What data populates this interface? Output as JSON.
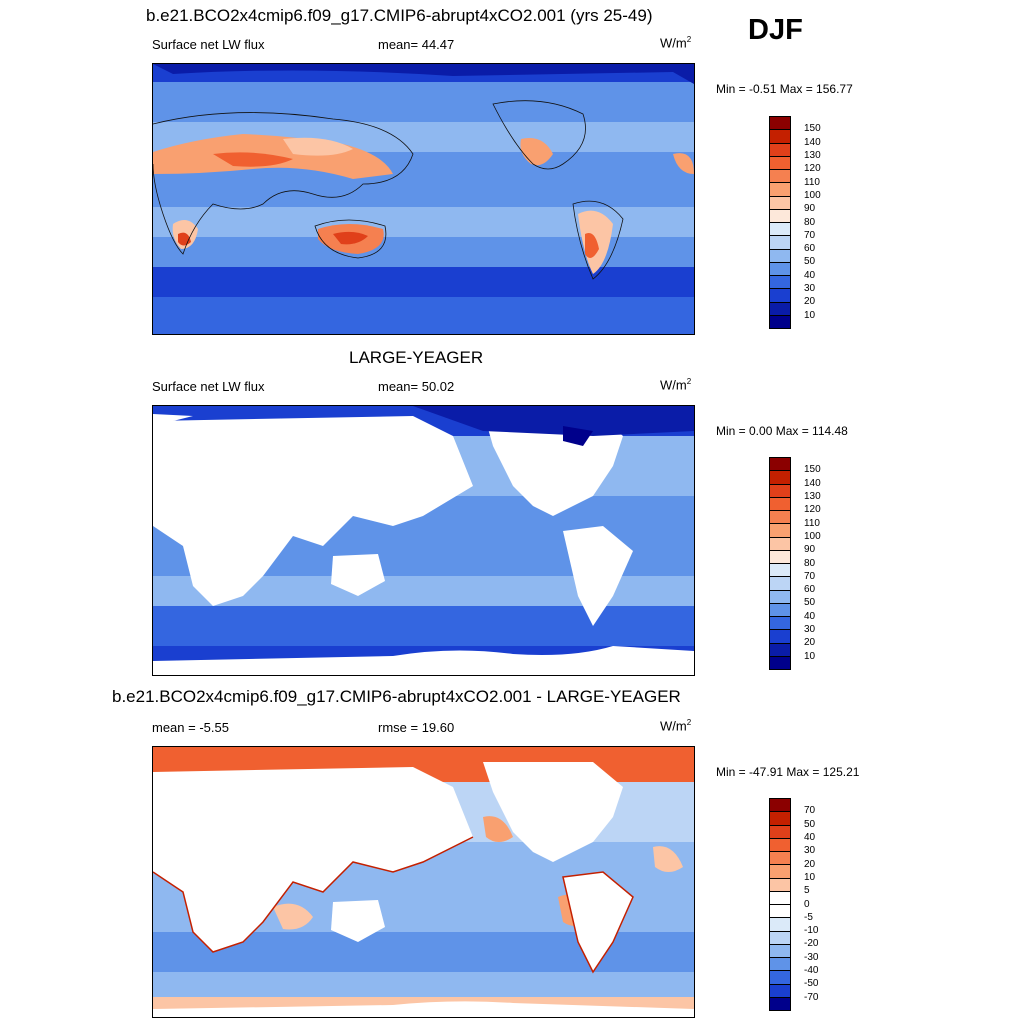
{
  "season": "DJF",
  "panels": [
    {
      "title": "b.e21.BCO2x4cmip6.f09_g17.CMIP6-abrupt4xCO2.001 (yrs 25-49)",
      "left_label": "Surface net LW flux",
      "center_label": "mean=  44.47",
      "units": "W/m",
      "units_sup": "2",
      "minmax": "Min =  -0.51 Max = 156.77",
      "colorbar": {
        "ticks": [
          "150",
          "140",
          "130",
          "120",
          "110",
          "100",
          "90",
          "80",
          "70",
          "60",
          "50",
          "40",
          "30",
          "20",
          "10"
        ],
        "colors": [
          "#8b0000",
          "#c42000",
          "#e0401a",
          "#f06030",
          "#f58050",
          "#f9a070",
          "#fcc5a5",
          "#fde8da",
          "#dbeaf9",
          "#bcd5f5",
          "#8fb8f0",
          "#5f93e8",
          "#3466e0",
          "#1a3fd0",
          "#0a1ca8",
          "#00008b"
        ]
      }
    },
    {
      "title": "LARGE-YEAGER",
      "left_label": "Surface net LW flux",
      "center_label": "mean=  50.02",
      "units": "W/m",
      "units_sup": "2",
      "minmax": "Min =   0.00 Max = 114.48",
      "colorbar": {
        "ticks": [
          "150",
          "140",
          "130",
          "120",
          "110",
          "100",
          "90",
          "80",
          "70",
          "60",
          "50",
          "40",
          "30",
          "20",
          "10"
        ],
        "colors": [
          "#8b0000",
          "#c42000",
          "#e0401a",
          "#f06030",
          "#f58050",
          "#f9a070",
          "#fcc5a5",
          "#fde8da",
          "#dbeaf9",
          "#bcd5f5",
          "#8fb8f0",
          "#5f93e8",
          "#3466e0",
          "#1a3fd0",
          "#0a1ca8",
          "#00008b"
        ]
      }
    },
    {
      "title": "b.e21.BCO2x4cmip6.f09_g17.CMIP6-abrupt4xCO2.001 - LARGE-YEAGER",
      "left_label": "mean =  -5.55",
      "center_label": "rmse =  19.60",
      "units": "W/m",
      "units_sup": "2",
      "minmax": "Min = -47.91 Max = 125.21",
      "colorbar": {
        "ticks": [
          "70",
          "50",
          "40",
          "30",
          "20",
          "10",
          "5",
          "0",
          "-5",
          "-10",
          "-20",
          "-30",
          "-40",
          "-50",
          "-70"
        ],
        "colors": [
          "#8b0000",
          "#c42000",
          "#e0401a",
          "#f06030",
          "#f58050",
          "#f9a070",
          "#fcc5a5",
          "#ffffff",
          "#ffffff",
          "#dbeaf9",
          "#bcd5f5",
          "#8fb8f0",
          "#5f93e8",
          "#3466e0",
          "#1a3fd0",
          "#00008b"
        ]
      }
    }
  ]
}
